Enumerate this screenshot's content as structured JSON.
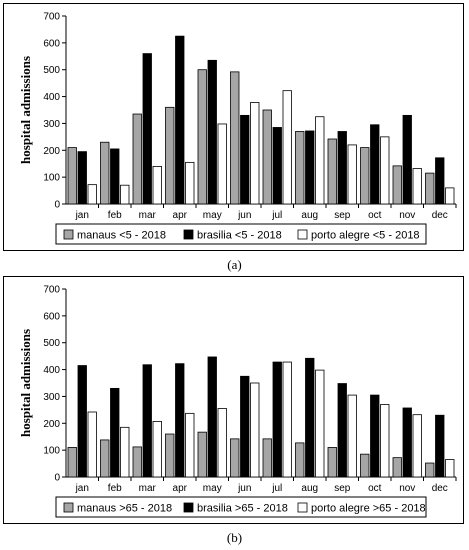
{
  "chart_data": [
    {
      "type": "bar",
      "panel_label": "(a)",
      "ylabel": "hospital admissions",
      "ylim": [
        0,
        700
      ],
      "yticks": [
        "0",
        "100",
        "200",
        "300",
        "400",
        "500",
        "600",
        "700"
      ],
      "categories": [
        "jan",
        "feb",
        "mar",
        "apr",
        "may",
        "jun",
        "jul",
        "aug",
        "sep",
        "oct",
        "nov",
        "dec"
      ],
      "legend_position": "bottom",
      "grid": false,
      "series": [
        {
          "name": "manaus <5 - 2018",
          "color": "#a6a6a6",
          "values": [
            210,
            230,
            335,
            360,
            500,
            492,
            350,
            270,
            242,
            210,
            142,
            115
          ]
        },
        {
          "name": "brasilia <5 - 2018",
          "color": "#000000",
          "values": [
            195,
            205,
            560,
            625,
            535,
            330,
            285,
            272,
            270,
            295,
            330,
            172
          ]
        },
        {
          "name": "porto alegre <5 - 2018",
          "color": "#ffffff",
          "values": [
            72,
            70,
            140,
            155,
            298,
            378,
            422,
            325,
            220,
            250,
            132,
            60
          ]
        }
      ]
    },
    {
      "type": "bar",
      "panel_label": "(b)",
      "ylabel": "hospital admissions",
      "ylim": [
        0,
        700
      ],
      "yticks": [
        "0",
        "100",
        "200",
        "300",
        "400",
        "500",
        "600",
        "700"
      ],
      "categories": [
        "jan",
        "feb",
        "mar",
        "apr",
        "may",
        "jun",
        "jul",
        "aug",
        "sep",
        "oct",
        "nov",
        "dec"
      ],
      "legend_position": "bottom",
      "grid": false,
      "series": [
        {
          "name": "manaus >65 - 2018",
          "color": "#a6a6a6",
          "values": [
            110,
            138,
            112,
            160,
            167,
            142,
            142,
            127,
            110,
            85,
            72,
            52
          ]
        },
        {
          "name": "brasilia >65 - 2018",
          "color": "#000000",
          "values": [
            415,
            330,
            418,
            422,
            447,
            375,
            428,
            442,
            348,
            305,
            257,
            230
          ]
        },
        {
          "name": "porto alegre >65 - 2018",
          "color": "#ffffff",
          "values": [
            242,
            185,
            207,
            237,
            255,
            350,
            428,
            398,
            305,
            270,
            232,
            65
          ]
        }
      ]
    }
  ]
}
